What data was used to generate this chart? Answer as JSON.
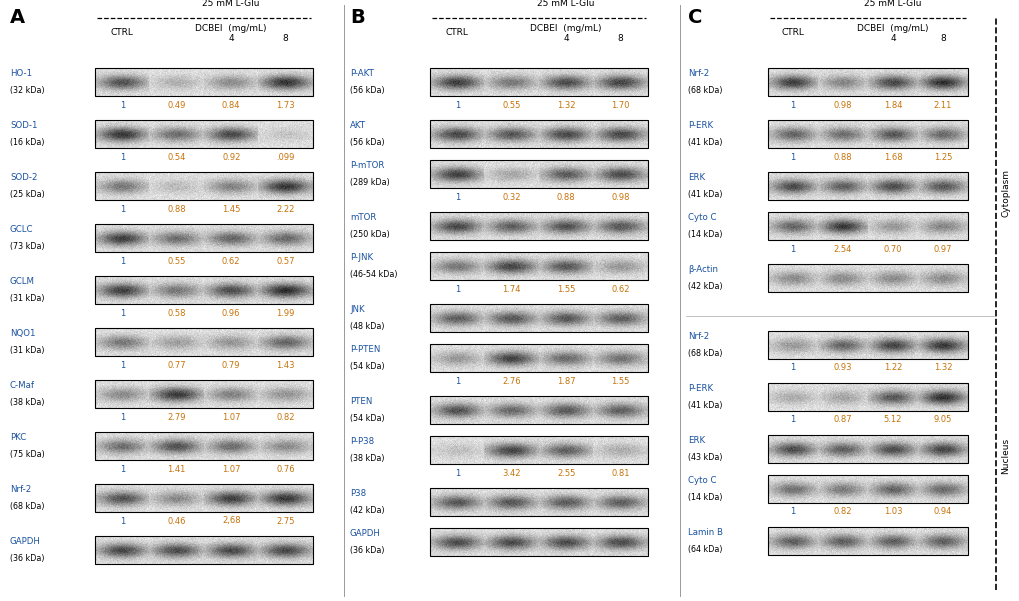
{
  "background_color": "#ffffff",
  "panel_A": {
    "label": "A",
    "bands": [
      {
        "name": "HO-1",
        "kda": "(32 kDa)",
        "values": [
          "1",
          "0.49",
          "0.84",
          "1.73"
        ],
        "show_values": true,
        "intensities": [
          0.75,
          0.25,
          0.45,
          0.9
        ]
      },
      {
        "name": "SOD-1",
        "kda": "(16 kDa)",
        "values": [
          "1",
          "0.54",
          "0.92",
          ".099"
        ],
        "show_values": true,
        "intensities": [
          0.9,
          0.6,
          0.8,
          0.15
        ]
      },
      {
        "name": "SOD-2",
        "kda": "(25 kDa)",
        "values": [
          "1",
          "0.88",
          "1.45",
          "2.22"
        ],
        "show_values": true,
        "intensities": [
          0.55,
          0.2,
          0.5,
          0.9
        ]
      },
      {
        "name": "GCLC",
        "kda": "(73 kDa)",
        "values": [
          "1",
          "0.55",
          "0.62",
          "0.57"
        ],
        "show_values": true,
        "intensities": [
          0.85,
          0.6,
          0.65,
          0.62
        ]
      },
      {
        "name": "GCLM",
        "kda": "(31 kDa)",
        "values": [
          "1",
          "0.58",
          "0.96",
          "1.99"
        ],
        "show_values": true,
        "intensities": [
          0.85,
          0.55,
          0.78,
          0.95
        ]
      },
      {
        "name": "NQO1",
        "kda": "(31 kDa)",
        "values": [
          "1",
          "0.77",
          "0.79",
          "1.43"
        ],
        "show_values": true,
        "intensities": [
          0.55,
          0.35,
          0.4,
          0.65
        ]
      },
      {
        "name": "C-Maf",
        "kda": "(38 kDa)",
        "values": [
          "1",
          "2.79",
          "1.07",
          "0.82"
        ],
        "show_values": true,
        "intensities": [
          0.45,
          0.88,
          0.5,
          0.4
        ]
      },
      {
        "name": "PKC",
        "kda": "(75 kDa)",
        "values": [
          "1",
          "1.41",
          "1.07",
          "0.76"
        ],
        "show_values": true,
        "intensities": [
          0.6,
          0.75,
          0.6,
          0.45
        ]
      },
      {
        "name": "Nrf-2",
        "kda": "(68 kDa)",
        "values": [
          "1",
          "0.46",
          "2,68",
          "2.75"
        ],
        "show_values": true,
        "intensities": [
          0.75,
          0.45,
          0.85,
          0.88
        ]
      },
      {
        "name": "GAPDH",
        "kda": "(36 kDa)",
        "values": null,
        "show_values": false,
        "intensities": [
          0.8,
          0.78,
          0.8,
          0.8
        ]
      }
    ]
  },
  "panel_B": {
    "label": "B",
    "bands": [
      {
        "name": "P-AKT",
        "kda": "(56 kDa)",
        "values": [
          "1",
          "0.55",
          "1.32",
          "1.70"
        ],
        "show_values": true,
        "intensities": [
          0.85,
          0.55,
          0.78,
          0.82
        ]
      },
      {
        "name": "AKT",
        "kda": "(56 kDa)",
        "values": null,
        "show_values": false,
        "intensities": [
          0.8,
          0.72,
          0.8,
          0.8
        ]
      },
      {
        "name": "P-mTOR",
        "kda": "(289 kDa)",
        "values": [
          "1",
          "0.32",
          "0.88",
          "0.98"
        ],
        "show_values": true,
        "intensities": [
          0.85,
          0.3,
          0.7,
          0.78
        ]
      },
      {
        "name": "mTOR",
        "kda": "(250 kDa)",
        "values": null,
        "show_values": false,
        "intensities": [
          0.8,
          0.68,
          0.75,
          0.72
        ]
      },
      {
        "name": "P-JNK",
        "kda": "(46-54 kDa)",
        "values": [
          "1",
          "1.74",
          "1.55",
          "0.62"
        ],
        "show_values": true,
        "intensities": [
          0.55,
          0.82,
          0.72,
          0.38
        ]
      },
      {
        "name": "JNK",
        "kda": "(48 kDa)",
        "values": null,
        "show_values": false,
        "intensities": [
          0.68,
          0.72,
          0.72,
          0.68
        ]
      },
      {
        "name": "P-PTEN",
        "kda": "(54 kDa)",
        "values": [
          "1",
          "2.76",
          "1.87",
          "1.55"
        ],
        "show_values": true,
        "intensities": [
          0.38,
          0.82,
          0.62,
          0.58
        ]
      },
      {
        "name": "PTEN",
        "kda": "(54 kDa)",
        "values": null,
        "show_values": false,
        "intensities": [
          0.75,
          0.62,
          0.72,
          0.68
        ]
      },
      {
        "name": "P-P38",
        "kda": "(38 kDa)",
        "values": [
          "1",
          "3.42",
          "2.55",
          "0.81"
        ],
        "show_values": true,
        "intensities": [
          0.18,
          0.82,
          0.68,
          0.28
        ]
      },
      {
        "name": "P38",
        "kda": "(42 kDa)",
        "values": null,
        "show_values": false,
        "intensities": [
          0.72,
          0.72,
          0.7,
          0.68
        ]
      },
      {
        "name": "GAPDH",
        "kda": "(36 kDa)",
        "values": null,
        "show_values": false,
        "intensities": [
          0.78,
          0.78,
          0.78,
          0.78
        ]
      }
    ]
  },
  "panel_C": {
    "label": "C",
    "cytoplasm_label": "Cytoplasm",
    "nucleus_label": "Nucleus",
    "cytoplasm_bands": [
      {
        "name": "Nrf-2",
        "kda": "(68 kDa)",
        "values": [
          "1",
          "0.98",
          "1.84",
          "2.11"
        ],
        "show_values": true,
        "intensities": [
          0.85,
          0.48,
          0.8,
          0.92
        ]
      },
      {
        "name": "P-ERK",
        "kda": "(41 kDa)",
        "values": [
          "1",
          "0.88",
          "1.68",
          "1.25"
        ],
        "show_values": true,
        "intensities": [
          0.65,
          0.6,
          0.72,
          0.62
        ]
      },
      {
        "name": "ERK",
        "kda": "(41 kDa)",
        "values": null,
        "show_values": false,
        "intensities": [
          0.78,
          0.68,
          0.78,
          0.72
        ]
      },
      {
        "name": "Cyto C",
        "kda": "(14 kDa)",
        "values": [
          "1",
          "2.54",
          "0.70",
          "0.97"
        ],
        "show_values": true,
        "intensities": [
          0.65,
          0.88,
          0.38,
          0.48
        ]
      },
      {
        "name": "β-Actin",
        "kda": "(42 kDa)",
        "values": null,
        "show_values": false,
        "intensities": [
          0.45,
          0.45,
          0.45,
          0.45
        ]
      }
    ],
    "nucleus_bands": [
      {
        "name": "Nrf-2",
        "kda": "(68 kDa)",
        "values": [
          "1",
          "0.93",
          "1.22",
          "1.32"
        ],
        "show_values": true,
        "intensities": [
          0.38,
          0.65,
          0.82,
          0.88
        ]
      },
      {
        "name": "P-ERK",
        "kda": "(41 kDa)",
        "values": [
          "1",
          "0.87",
          "5.12",
          "9.05"
        ],
        "show_values": true,
        "intensities": [
          0.28,
          0.32,
          0.72,
          0.92
        ]
      },
      {
        "name": "ERK",
        "kda": "(43 kDa)",
        "values": null,
        "show_values": false,
        "intensities": [
          0.78,
          0.68,
          0.78,
          0.82
        ]
      },
      {
        "name": "Cyto C",
        "kda": "(14 kDa)",
        "values": [
          "1",
          "0.82",
          "1.03",
          "0.94"
        ],
        "show_values": true,
        "intensities": [
          0.58,
          0.52,
          0.65,
          0.62
        ]
      },
      {
        "name": "Lamin B",
        "kda": "(64 kDa)",
        "values": null,
        "show_values": false,
        "intensities": [
          0.68,
          0.68,
          0.68,
          0.68
        ]
      }
    ]
  },
  "colors": {
    "label_color": "#1a52a0",
    "value_color": "#c8730a",
    "text_black": "#000000",
    "border_color": "#000000",
    "band_bg_light": "#e8e8e8",
    "band_bg_dark": "#b8b8b8"
  }
}
